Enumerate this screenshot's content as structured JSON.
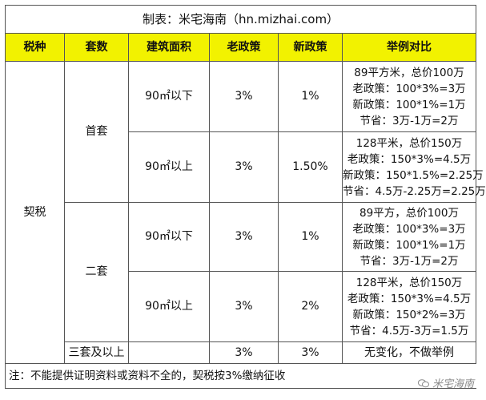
{
  "title": "制表：米宅海南（hn.mizhai.com）",
  "headers": [
    "税种",
    "套数",
    "建筑面积",
    "老政策",
    "新政策",
    "举例对比"
  ],
  "tax_type": "契税",
  "groups": [
    {
      "count": "首套",
      "rows": [
        {
          "area": "90㎡以下",
          "old": "3%",
          "new": "1%",
          "example": [
            "89平方米，总价100万",
            "老政策：100*3%=3万",
            "新政策：100*1%=1万",
            "节省：3万-1万=2万"
          ]
        },
        {
          "area": "90㎡以上",
          "old": "3%",
          "new": "1.50%",
          "example": [
            "128平米，总价150万",
            "老政策：150*3%=4.5万",
            "新政策：150*1.5%=2.25万",
            "节省：4.5万-2.25万=2.25万"
          ]
        }
      ]
    },
    {
      "count": "二套",
      "rows": [
        {
          "area": "90㎡以下",
          "old": "3%",
          "new": "1%",
          "example": [
            "89平方，总价100万",
            "老政策：100*3%=3万",
            "新政策：100*1%=1万",
            "节省：3万-1万=2万"
          ]
        },
        {
          "area": "90㎡以上",
          "old": "3%",
          "new": "2%",
          "example": [
            "128平米，总价150万",
            "老政策：150*3%=4.5万",
            "新政策：150*2%=3万",
            "节省：4.5万-3万=1.5万"
          ]
        }
      ]
    }
  ],
  "third": {
    "count": "三套及以上",
    "area": "",
    "old": "3%",
    "new": "3%",
    "example": "无变化，不做举例"
  },
  "note": "注：不能提供证明资料或资料不全的，契税按3%缴纳征收",
  "watermark": "米宅海南",
  "colors": {
    "header_bg": "#f2f200",
    "border": "#555555"
  }
}
